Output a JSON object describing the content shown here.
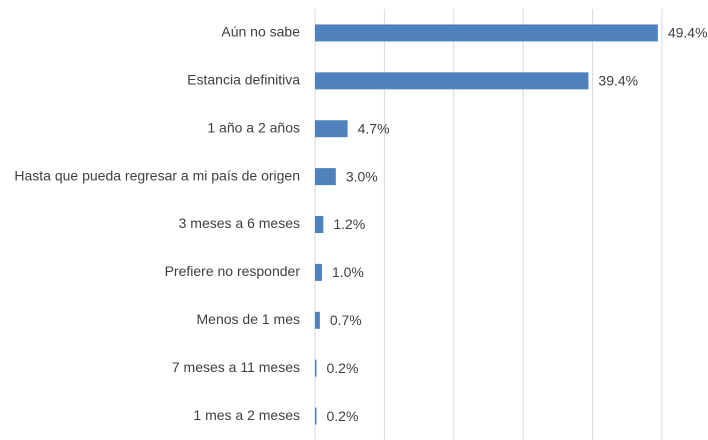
{
  "chart_data": {
    "type": "hbar",
    "categories": [
      "Aún no sabe",
      "Estancia definitiva",
      "1 año a 2 años",
      "Hasta que pueda regresar a mi país de origen",
      "3 meses a 6 meses",
      "Prefiere no responder",
      "Menos de 1 mes",
      "7 meses a 11 meses",
      "1 mes a 2 meses"
    ],
    "values": [
      49.4,
      39.4,
      4.7,
      3.0,
      1.2,
      1.0,
      0.7,
      0.2,
      0.2
    ],
    "value_labels": [
      "49.4%",
      "39.4%",
      "4.7%",
      "3.0%",
      "1.2%",
      "1.0%",
      "0.7%",
      "0.2%",
      "0.2%"
    ],
    "color": "#4f81bd",
    "xlim": [
      0,
      50
    ],
    "xticks": [
      0,
      10,
      20,
      30,
      40,
      50
    ],
    "grid": true
  }
}
